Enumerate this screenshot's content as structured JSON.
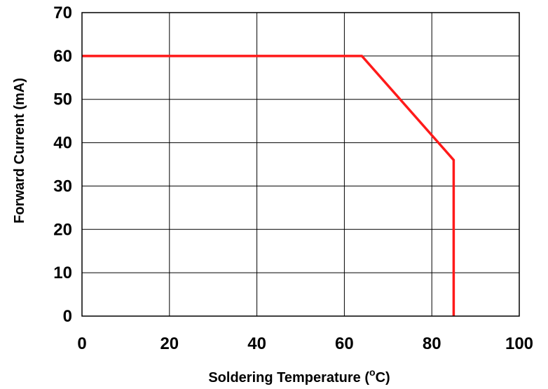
{
  "chart_data": {
    "type": "line",
    "title": "",
    "xlabel": "Soldering Temperature (",
    "xlabel_unit_superscript": "o",
    "xlabel_unit_tail": "C)",
    "ylabel": "Forward Current (mA)",
    "xlim": [
      0,
      100
    ],
    "ylim": [
      0,
      70
    ],
    "x_ticks": [
      0,
      20,
      40,
      60,
      80,
      100
    ],
    "y_ticks": [
      0,
      10,
      20,
      30,
      40,
      50,
      60,
      70
    ],
    "grid": true,
    "legend": "none",
    "series": [
      {
        "color": "#ff1a1a",
        "x": [
          0,
          64,
          85,
          85
        ],
        "y": [
          60,
          60,
          36,
          0
        ]
      }
    ]
  }
}
